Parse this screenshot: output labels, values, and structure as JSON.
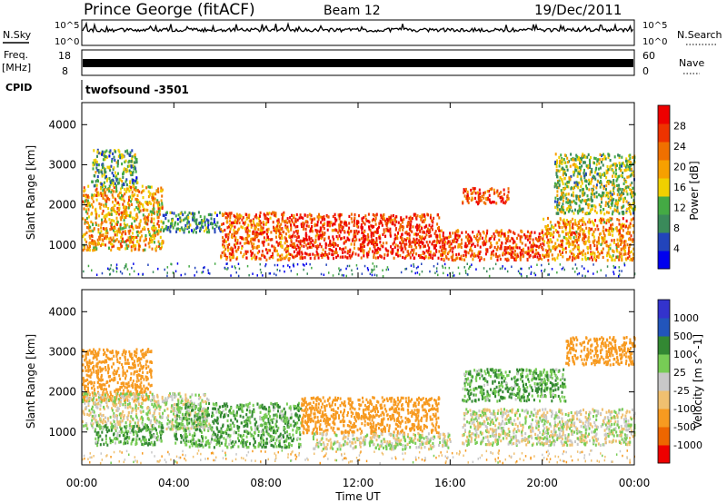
{
  "header": {
    "station": "Prince George (fitACF)",
    "beam": "Beam 12",
    "date": "19/Dec/2011"
  },
  "strips": {
    "nsky": {
      "label": "N.Sky",
      "ticks": [
        "10^5",
        "10^0"
      ],
      "right_ticks": [
        "10^5",
        "10^0"
      ],
      "right_label": "N.Search"
    },
    "freq": {
      "label_line1": "Freq.",
      "label_line2": "[MHz]",
      "ticks": [
        "18",
        "8"
      ],
      "right_ticks": [
        "60",
        "0"
      ],
      "right_label": "Nave"
    },
    "cpid": {
      "label": "CPID",
      "value": "twofsound -3501"
    }
  },
  "colors": {
    "power_scale": [
      "#0000ee",
      "#2244bb",
      "#3a8a5a",
      "#44aa44",
      "#f0d000",
      "#f7a000",
      "#f07000",
      "#ee3300",
      "#ee0000"
    ],
    "velocity_scale": [
      "#3333cc",
      "#2255bb",
      "#338833",
      "#77cc55",
      "#c8c8c8",
      "#f0c070",
      "#f79a20",
      "#ee6600",
      "#ee0000"
    ]
  },
  "chart_data": [
    {
      "type": "heatmap",
      "panel": "power",
      "ylabel": "Slant Range [km]",
      "xlabel": "Time UT",
      "xlim": [
        "00:00",
        "24:00"
      ],
      "x_ticks": [
        "00:00",
        "04:00",
        "08:00",
        "12:00",
        "16:00",
        "20:00",
        "00:00"
      ],
      "ylim": [
        180,
        4550
      ],
      "y_ticks": [
        1000,
        2000,
        3000,
        4000
      ],
      "colorbar": {
        "label": "Power [dB]",
        "ticks": [
          4,
          8,
          12,
          16,
          20,
          24,
          28
        ],
        "range": [
          0,
          30
        ]
      },
      "echo_bands": [
        {
          "start_h": 0.0,
          "end_h": 3.5,
          "range_low_km": 900,
          "range_high_km": 2500,
          "level": 18
        },
        {
          "start_h": 0.4,
          "end_h": 2.4,
          "range_low_km": 2500,
          "range_high_km": 3400,
          "level": 10
        },
        {
          "start_h": 3.5,
          "end_h": 6.0,
          "range_low_km": 1350,
          "range_high_km": 1850,
          "level": 9
        },
        {
          "start_h": 6.0,
          "end_h": 9.0,
          "range_low_km": 650,
          "range_high_km": 1850,
          "level": 22
        },
        {
          "start_h": 9.0,
          "end_h": 15.5,
          "range_low_km": 700,
          "range_high_km": 1800,
          "level": 26
        },
        {
          "start_h": 15.5,
          "end_h": 20.0,
          "range_low_km": 650,
          "range_high_km": 1400,
          "level": 24
        },
        {
          "start_h": 16.5,
          "end_h": 18.5,
          "range_low_km": 2050,
          "range_high_km": 2450,
          "level": 24
        },
        {
          "start_h": 20.0,
          "end_h": 24.0,
          "range_low_km": 650,
          "range_high_km": 1700,
          "level": 20
        },
        {
          "start_h": 20.5,
          "end_h": 24.0,
          "range_low_km": 1800,
          "range_high_km": 3300,
          "level": 13
        }
      ]
    },
    {
      "type": "heatmap",
      "panel": "velocity",
      "ylabel": "Slant Range [km]",
      "xlabel": "Time UT",
      "xlim": [
        "00:00",
        "24:00"
      ],
      "x_ticks": [
        "00:00",
        "04:00",
        "08:00",
        "12:00",
        "16:00",
        "20:00",
        "00:00"
      ],
      "ylim": [
        180,
        4550
      ],
      "y_ticks": [
        1000,
        2000,
        3000,
        4000
      ],
      "colorbar": {
        "label": "Velocity [m s^-1]",
        "ticks": [
          1000,
          500,
          100,
          25,
          -25,
          -100,
          -500,
          -1000
        ]
      },
      "echo_bands": [
        {
          "start_h": 0.0,
          "end_h": 3.0,
          "range_low_km": 1800,
          "range_high_km": 3100,
          "velocity": -300
        },
        {
          "start_h": 0.0,
          "end_h": 5.5,
          "range_low_km": 1100,
          "range_high_km": 2000,
          "velocity": 0
        },
        {
          "start_h": 0.5,
          "end_h": 3.5,
          "range_low_km": 700,
          "range_high_km": 1200,
          "velocity": 100
        },
        {
          "start_h": 4.0,
          "end_h": 9.5,
          "range_low_km": 650,
          "range_high_km": 1750,
          "velocity": 100
        },
        {
          "start_h": 9.5,
          "end_h": 15.5,
          "range_low_km": 1000,
          "range_high_km": 1900,
          "velocity": -200
        },
        {
          "start_h": 10.0,
          "end_h": 16.0,
          "range_low_km": 600,
          "range_high_km": 1000,
          "velocity": 0
        },
        {
          "start_h": 16.5,
          "end_h": 24.0,
          "range_low_km": 700,
          "range_high_km": 1600,
          "velocity": 0
        },
        {
          "start_h": 16.5,
          "end_h": 21.0,
          "range_low_km": 1800,
          "range_high_km": 2600,
          "velocity": 100
        },
        {
          "start_h": 21.0,
          "end_h": 24.0,
          "range_low_km": 2700,
          "range_high_km": 3400,
          "velocity": -400
        }
      ]
    }
  ]
}
